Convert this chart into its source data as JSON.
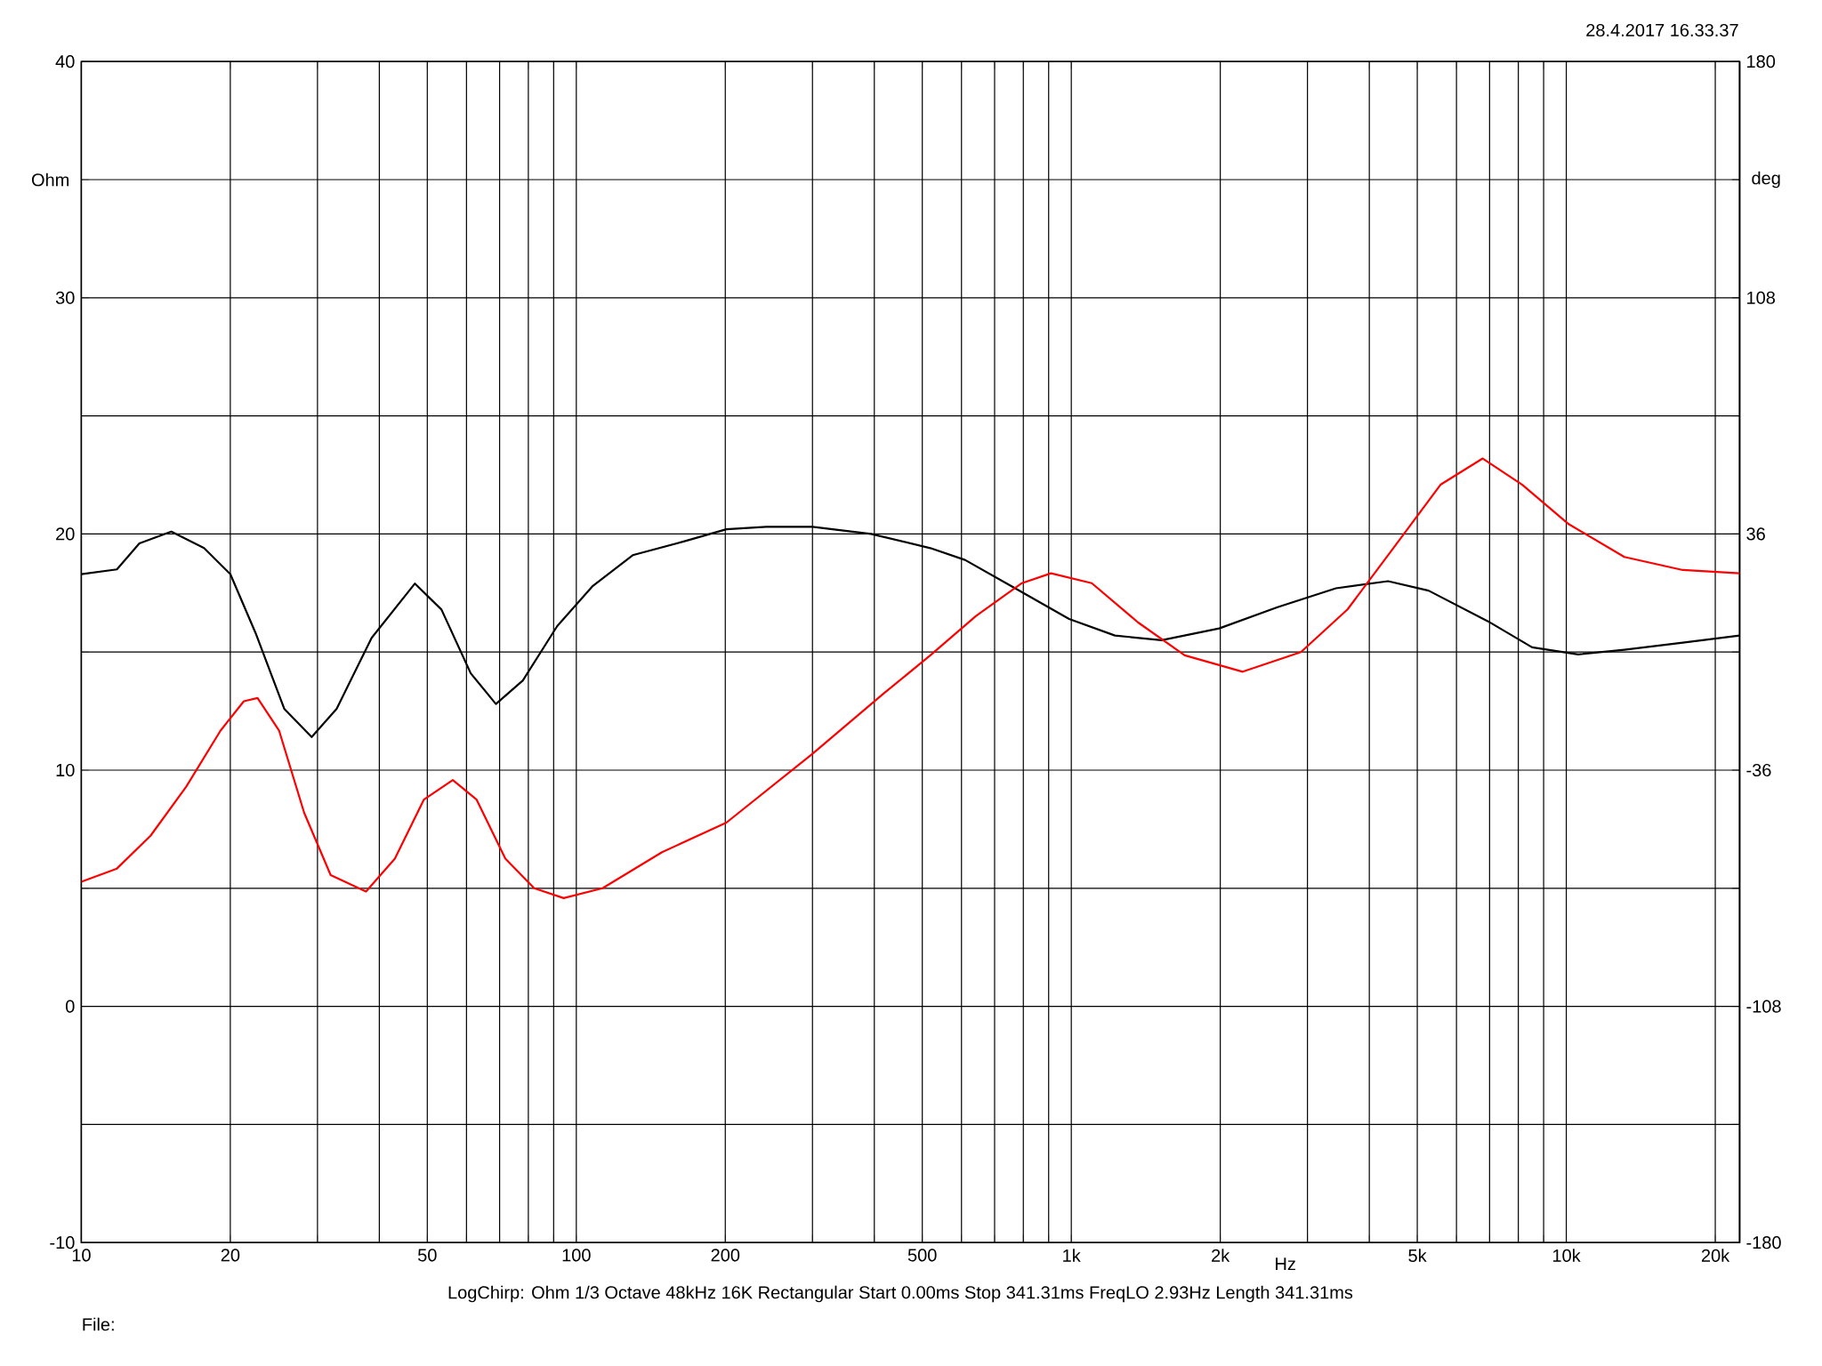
{
  "chart_data": {
    "type": "line",
    "log": "x",
    "grid": true,
    "xlabel": "Hz",
    "ylabel": "Ohm",
    "y2label": "deg",
    "annotations": [
      "28.4.2017 16.33.37",
      "LogChirp:  Ohm  1/3 Octave  48kHz  16K  Rectangular  Start 0.00ms  Stop 341.31ms  FreqLO 2.93Hz  Length 341.31ms",
      "File:"
    ],
    "xlim": [
      10,
      22400
    ],
    "xticks": [
      10,
      20,
      {
        "value": 30,
        "label": null
      },
      {
        "value": 40,
        "label": null
      },
      50,
      {
        "value": 60,
        "label": null
      },
      {
        "value": 70,
        "label": null
      },
      {
        "value": 80,
        "label": null
      },
      {
        "value": 90,
        "label": null
      },
      100,
      200,
      {
        "value": 300,
        "label": null
      },
      {
        "value": 400,
        "label": null
      },
      500,
      {
        "value": 600,
        "label": null
      },
      {
        "value": 700,
        "label": null
      },
      {
        "value": 800,
        "label": null
      },
      {
        "value": 900,
        "label": null
      },
      {
        "value": 1000,
        "label": "1k"
      },
      {
        "value": 2000,
        "label": "2k"
      },
      {
        "value": 3000,
        "label": null
      },
      {
        "value": 4000,
        "label": null
      },
      {
        "value": 5000,
        "label": "5k"
      },
      {
        "value": 6000,
        "label": null
      },
      {
        "value": 7000,
        "label": null
      },
      {
        "value": 8000,
        "label": null
      },
      {
        "value": 9000,
        "label": null
      },
      {
        "value": 10000,
        "label": "10k"
      },
      {
        "value": 20000,
        "label": "20k"
      }
    ],
    "ylim": [
      -10,
      40
    ],
    "yticks": [
      -10,
      {
        "value": -5,
        "label": null
      },
      0,
      {
        "value": 5,
        "label": null
      },
      10,
      {
        "value": 15,
        "label": null
      },
      20,
      {
        "value": 25,
        "label": null
      },
      30,
      {
        "value": 35,
        "label": null
      },
      40
    ],
    "y2lim": [
      -180,
      180
    ],
    "y2ticks": [
      -180,
      {
        "value": -144,
        "label": null
      },
      -108,
      {
        "value": -72,
        "label": null
      },
      -36,
      {
        "value": 0,
        "label": null
      },
      36,
      {
        "value": 72,
        "label": null
      },
      108,
      {
        "value": 144,
        "label": null
      },
      180
    ],
    "series": [
      {
        "color": "#000000",
        "x": [
          10,
          11.8,
          13.1,
          15.2,
          17.7,
          20,
          22.5,
          25.7,
          29.2,
          32.8,
          38.6,
          47.2,
          53.4,
          61.2,
          68.8,
          78,
          91.5,
          108,
          130,
          166,
          201,
          242,
          300,
          394,
          519,
          610,
          755,
          990,
          1225,
          1522,
          1990,
          2610,
          3425,
          4365,
          5270,
          6950,
          8530,
          10570,
          13100,
          17200,
          22400
        ],
        "values": [
          18.3,
          18.5,
          19.6,
          20.1,
          19.4,
          18.3,
          15.8,
          12.6,
          11.4,
          12.6,
          15.6,
          17.9,
          16.8,
          14.1,
          12.8,
          13.8,
          16.1,
          17.8,
          19.1,
          19.7,
          20.2,
          20.3,
          20.3,
          20.0,
          19.4,
          18.9,
          17.8,
          16.4,
          15.7,
          15.5,
          16.0,
          16.9,
          17.7,
          18.0,
          17.6,
          16.3,
          15.2,
          14.9,
          15.1,
          15.4,
          15.7
        ]
      },
      {
        "color": "#ff0000",
        "axis": "y2",
        "x": [
          10,
          11.8,
          13.8,
          16.3,
          19.1,
          21.3,
          22.7,
          25.1,
          28.2,
          31.9,
          37.6,
          43,
          49.2,
          56.3,
          62.9,
          71.9,
          82.2,
          94.3,
          113,
          149,
          201,
          300,
          415,
          519,
          642,
          795,
          910,
          1100,
          1365,
          1695,
          2220,
          2910,
          3615,
          4490,
          5570,
          6780,
          8150,
          10110,
          13100,
          17200,
          22400
        ],
        "values": [
          -70,
          -66,
          -56,
          -41,
          -24,
          -15,
          -14,
          -24,
          -49,
          -68,
          -73,
          -63,
          -45,
          -39,
          -45,
          -63,
          -72,
          -75,
          -72,
          -61,
          -52,
          -31,
          -13,
          -1,
          11,
          21,
          24,
          21,
          9,
          -1,
          -6,
          0,
          13,
          32,
          51,
          59,
          51,
          39,
          29,
          25,
          24
        ]
      }
    ]
  }
}
